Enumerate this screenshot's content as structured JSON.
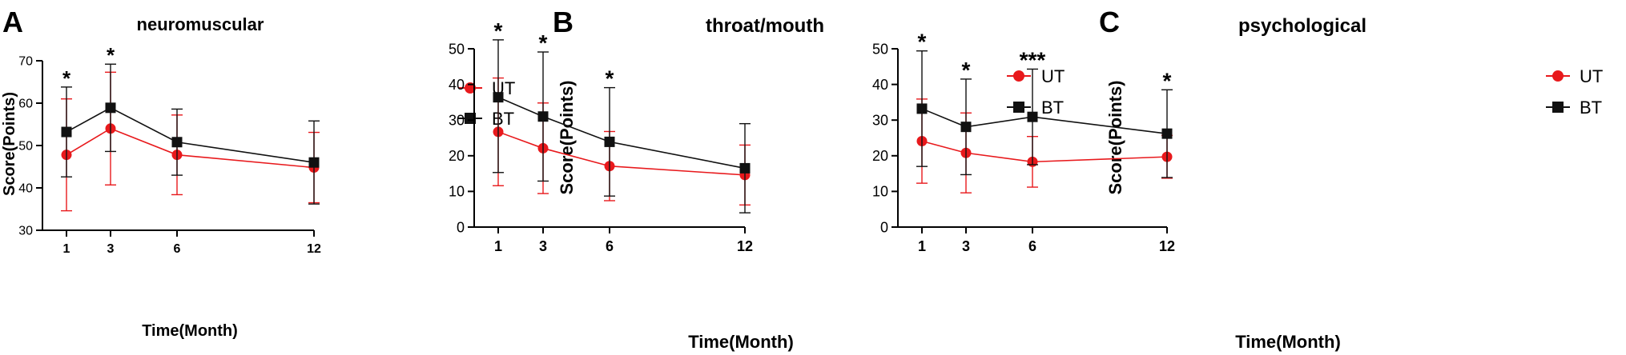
{
  "colors": {
    "UT": "#e8191c",
    "BT": "#111111",
    "axis": "#000000"
  },
  "chart_data": [
    {
      "type": "line",
      "panel_letter": "A",
      "title": "neuromuscular",
      "xlabel": "Time(Month)",
      "ylabel": "Score(Points)",
      "x": [
        1,
        3,
        6,
        12
      ],
      "xticks": [
        "1",
        "3",
        "6",
        "12"
      ],
      "ylim": [
        30,
        70
      ],
      "yticks": [
        "30",
        "40",
        "50",
        "60",
        "70"
      ],
      "series": [
        {
          "name": "UT",
          "marker": "circle",
          "values": [
            47.8,
            54.0,
            47.8,
            44.8
          ],
          "error": [
            13.2,
            13.3,
            9.4,
            8.3
          ]
        },
        {
          "name": "BT",
          "marker": "square",
          "values": [
            53.2,
            58.9,
            50.8,
            46.0
          ],
          "error": [
            10.6,
            10.3,
            7.8,
            9.8
          ]
        }
      ],
      "significance": [
        {
          "x": 1,
          "label": "*"
        },
        {
          "x": 3,
          "label": "*"
        }
      ],
      "legend": "right"
    },
    {
      "type": "line",
      "panel_letter": "B",
      "title": "throat/mouth",
      "xlabel": "Time(Month)",
      "ylabel": "Score(Points)",
      "x": [
        1,
        3,
        6,
        12
      ],
      "xticks": [
        "1",
        "3",
        "6",
        "12"
      ],
      "ylim": [
        0,
        50
      ],
      "yticks": [
        "0",
        "10",
        "20",
        "30",
        "40",
        "50"
      ],
      "series": [
        {
          "name": "UT",
          "marker": "circle",
          "values": [
            26.7,
            22.1,
            17.1,
            14.6
          ],
          "error": [
            15.1,
            12.7,
            9.7,
            8.4
          ]
        },
        {
          "name": "BT",
          "marker": "square",
          "values": [
            36.4,
            31.0,
            23.9,
            16.5
          ],
          "error": [
            21.1,
            18.1,
            15.2,
            12.5
          ]
        }
      ],
      "significance": [
        {
          "x": 1,
          "label": "*"
        },
        {
          "x": 3,
          "label": "*"
        },
        {
          "x": 6,
          "label": "*"
        }
      ],
      "legend": "right"
    },
    {
      "type": "line",
      "panel_letter": "C",
      "title": "psychological",
      "xlabel": "Time(Month)",
      "ylabel": "Score(Points)",
      "x": [
        1,
        3,
        6,
        12
      ],
      "xticks": [
        "1",
        "3",
        "6",
        "12"
      ],
      "ylim": [
        0,
        50
      ],
      "yticks": [
        "0",
        "10",
        "20",
        "30",
        "40",
        "50"
      ],
      "series": [
        {
          "name": "UT",
          "marker": "circle",
          "values": [
            24.1,
            20.8,
            18.3,
            19.7
          ],
          "error": [
            11.8,
            11.2,
            7.1,
            6.0
          ]
        },
        {
          "name": "BT",
          "marker": "square",
          "values": [
            33.2,
            28.1,
            30.9,
            26.2
          ],
          "error": [
            16.2,
            13.4,
            13.4,
            12.3
          ]
        }
      ],
      "significance": [
        {
          "x": 1,
          "label": "*"
        },
        {
          "x": 3,
          "label": "*"
        },
        {
          "x": 6,
          "label": "***"
        },
        {
          "x": 12,
          "label": "*"
        }
      ],
      "legend": "right"
    }
  ]
}
